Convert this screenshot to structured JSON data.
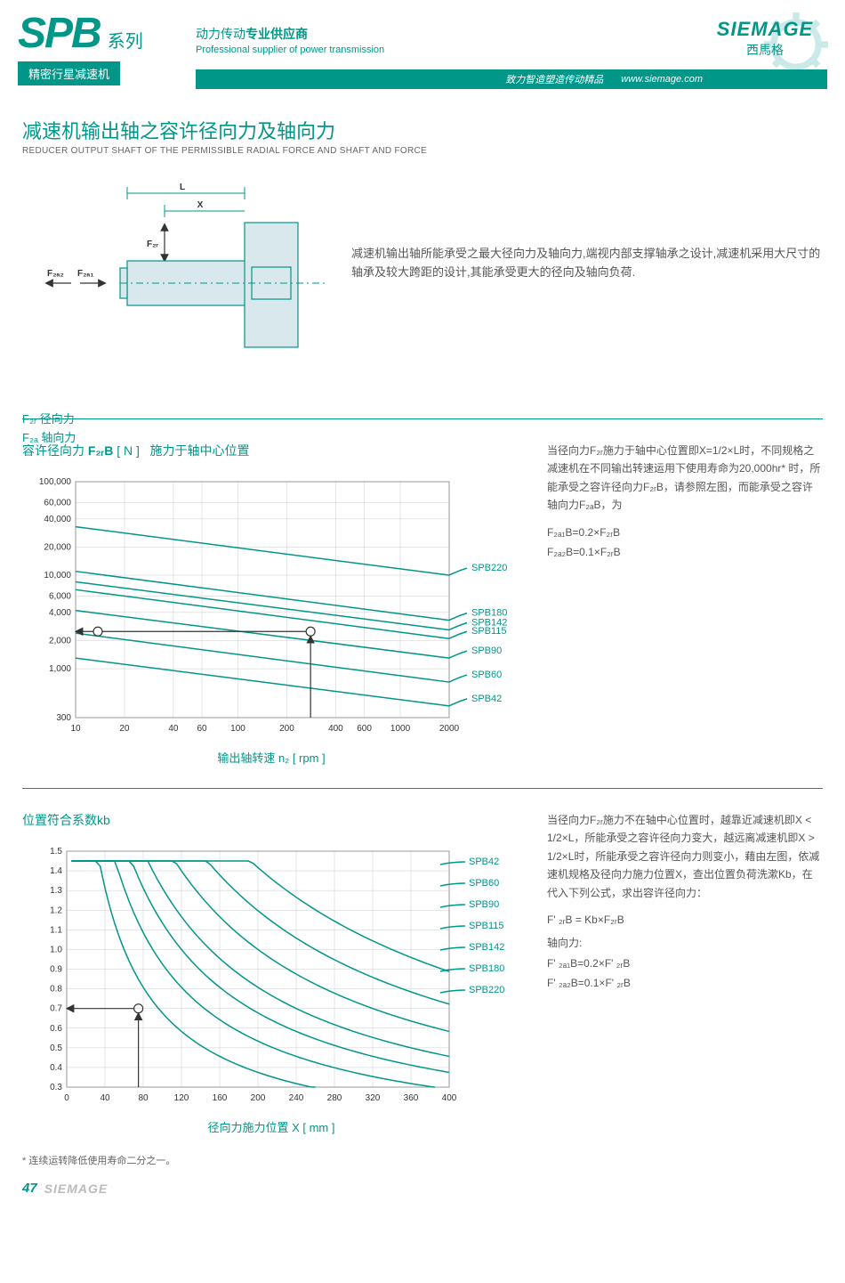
{
  "header": {
    "logo": "SPB",
    "series": "系列",
    "sub_bar": "精密行星减速机",
    "tagline_cn_pre": "动力传动",
    "tagline_cn_bold": "专业供应商",
    "tagline_en": "Professional supplier of power transmission",
    "right_bar_cn": "致力智造塑造传动精品",
    "right_bar_url": "www.siemage.com",
    "brand_name": "SIEMAGE",
    "brand_cn": "西馬格"
  },
  "section1": {
    "title_cn": "减速机输出轴之容许径向力及轴向力",
    "title_en": "REDUCER OUTPUT SHAFT OF THE PERMISSIBLE RADIAL FORCE AND SHAFT AND FORCE",
    "desc": "减速机输出轴所能承受之最大径向力及轴向力,端视内部支撑轴承之设计,减速机采用大尺寸的轴承及较大跨距的设计,其能承受更大的径向及轴向负荷.",
    "dim_L": "L",
    "dim_X": "X",
    "dim_F2r": "F₂ᵣ",
    "dim_F2a2": "F₂ₐ₂",
    "dim_F2a1": "F₂ₐ₁",
    "force_radial": "F₂ᵣ 径向力",
    "force_axial": "F₂ₐ 轴向力"
  },
  "chart1": {
    "title_pre": "容许径向力",
    "title_sym": "F₂ᵣB",
    "title_unit": "[ N ]",
    "title_post": "施力于轴中心位置",
    "y_ticks": [
      "100,000",
      "60,000",
      "40,000",
      "20,000",
      "10,000",
      "6,000",
      "4,000",
      "2,000",
      "1,000",
      "300"
    ],
    "y_vals_log": [
      100000,
      60000,
      40000,
      20000,
      10000,
      6000,
      4000,
      2000,
      1000,
      300
    ],
    "x_ticks": [
      "10",
      "20",
      "40",
      "60",
      "100",
      "200",
      "400",
      "600",
      "1000",
      "2000"
    ],
    "x_vals_log": [
      10,
      20,
      40,
      60,
      100,
      200,
      400,
      600,
      1000,
      2000
    ],
    "x_axis_label": "输出轴转速 n₂ [ rpm ]",
    "series": [
      {
        "name": "SPB220",
        "y0": 33000,
        "y1": 10000
      },
      {
        "name": "SPB180",
        "y0": 11000,
        "y1": 3300
      },
      {
        "name": "SPB142",
        "y0": 8500,
        "y1": 2600
      },
      {
        "name": "SPB115",
        "y0": 7000,
        "y1": 2100
      },
      {
        "name": "SPB90",
        "y0": 4200,
        "y1": 1300
      },
      {
        "name": "SPB60",
        "y0": 2400,
        "y1": 720
      },
      {
        "name": "SPB42",
        "y0": 1300,
        "y1": 400
      }
    ],
    "line_color": "#009688",
    "grid_color": "#cccccc",
    "bg_color": "#ffffff",
    "side_text": "当径向力F₂ᵣ施力于轴中心位置即X=1/2×L时，不同规格之减速机在不同输出转速运用下使用寿命为20,000hr* 时，所能承受之容许径向力F₂ᵣB，请参照左图，而能承受之容许轴向力F₂ₐB，为",
    "formula1": "F₂ₐ₁B=0.2×F₂ᵣB",
    "formula2": "F₂ₐ₂B=0.1×F₂ᵣB",
    "indicator_x_rpm": 280,
    "indicator_y_force": 2500
  },
  "chart2": {
    "title": "位置符合系数kb",
    "y_ticks": [
      "1.5",
      "1.4",
      "1.3",
      "1.2",
      "1.1",
      "1.0",
      "0.9",
      "0.8",
      "0.7",
      "0.6",
      "0.5",
      "0.4",
      "0.3"
    ],
    "y_vals": [
      1.5,
      1.4,
      1.3,
      1.2,
      1.1,
      1.0,
      0.9,
      0.8,
      0.7,
      0.6,
      0.5,
      0.4,
      0.3
    ],
    "x_ticks": [
      "0",
      "40",
      "80",
      "120",
      "160",
      "200",
      "240",
      "280",
      "320",
      "360",
      "400"
    ],
    "x_vals": [
      0,
      40,
      80,
      120,
      160,
      200,
      240,
      280,
      320,
      360,
      400
    ],
    "x_axis_label": "径向力施力位置 X [ mm ]",
    "series": [
      {
        "name": "SPB42",
        "half_x": 60
      },
      {
        "name": "SPB60",
        "half_x": 90
      },
      {
        "name": "SPB90",
        "half_x": 120
      },
      {
        "name": "SPB115",
        "half_x": 150
      },
      {
        "name": "SPB142",
        "half_x": 200
      },
      {
        "name": "SPB180",
        "half_x": 260
      },
      {
        "name": "SPB220",
        "half_x": 340
      }
    ],
    "line_color": "#009688",
    "grid_color": "#cccccc",
    "side_text": "当径向力F₂ᵣ施力不在轴中心位置时，越靠近减速机即X < 1/2×L，所能承受之容许径向力变大，越远离减速机即X > 1/2×L时，所能承受之容许径向力则变小，藉由左图，依减速机规格及径向力施力位置X，查出位置负荷洗漱Kb，在代入下列公式，求出容许径向力：",
    "formula1_label": "F' ₂ᵣB = Kb×F₂ᵣB",
    "axial_label": "轴向力:",
    "formula2": "F' ₂ₐ₁B=0.2×F' ₂ᵣB",
    "formula3": "F' ₂ₐ₂B=0.1×F' ₂ᵣB",
    "indicator_x_mm": 75,
    "indicator_y_kb": 0.7
  },
  "footer": {
    "footnote": "* 连续运转降低使用寿命二分之一。",
    "page": "47",
    "brand": "SIEMAGE"
  }
}
